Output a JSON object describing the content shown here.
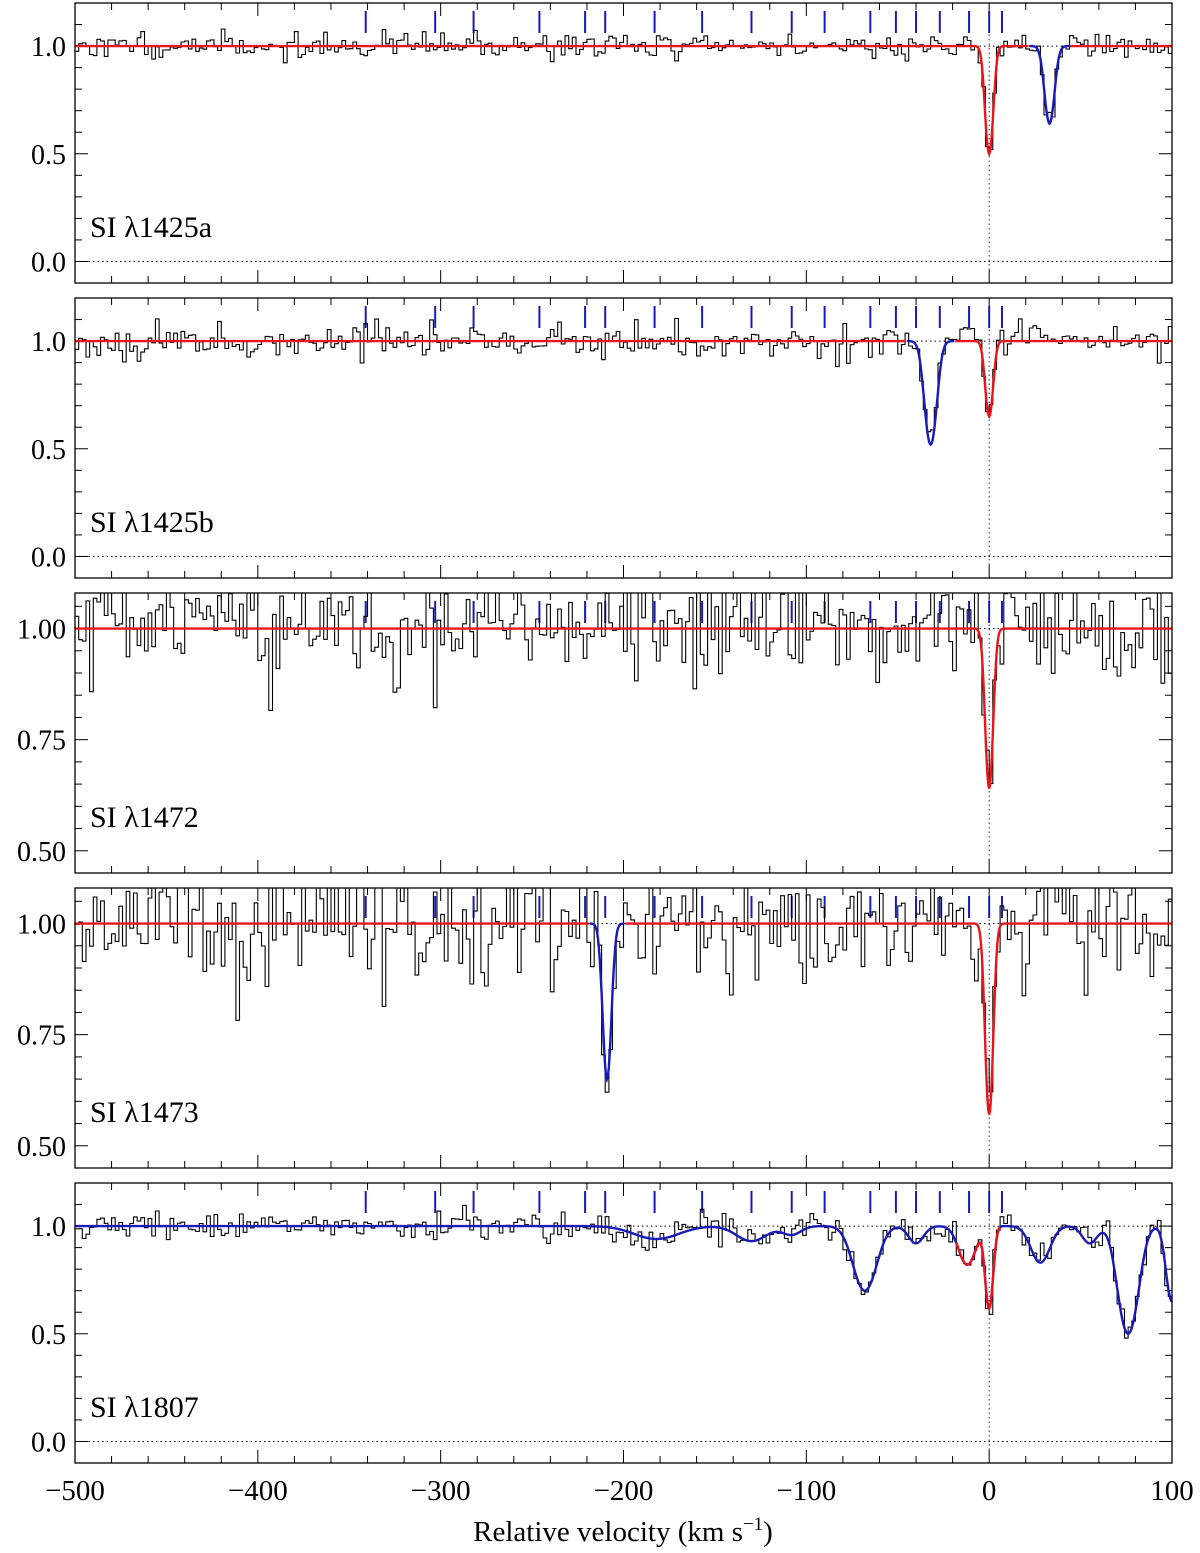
{
  "chart_data": {
    "type": "line",
    "layout": "vertical-stack-shared-x",
    "xlabel": "Relative velocity (km s",
    "xlabel_sup": "−1",
    "xlabel_close": ")",
    "xlim": [
      -500,
      100
    ],
    "x_ticks": [
      -500,
      -400,
      -300,
      -200,
      -100,
      0,
      100
    ],
    "x_tick_labels": [
      "−500",
      "−400",
      "−300",
      "−200",
      "−100",
      "0",
      "100"
    ],
    "component_marker_velocities": [
      -341,
      -303,
      -282,
      -246,
      -221,
      -210,
      -183,
      -157,
      -130,
      -108,
      -90,
      -65,
      -51,
      -40,
      -27,
      -11,
      0,
      7
    ],
    "colors": {
      "data": "#000000",
      "fit_main": "#e8161b",
      "fit_other": "#1a1ab8",
      "markers": "#1a1ab8",
      "reference": "#1a1ab8"
    },
    "panels": [
      {
        "label": "SI λ1425a",
        "ylim": [
          -0.1,
          1.2
        ],
        "y_ticks": [
          0.0,
          0.5,
          1.0
        ],
        "y_tick_labels": [
          "0.0",
          "0.5",
          "1.0"
        ],
        "noise": 0.03,
        "seed": 11,
        "features": [
          {
            "v": 0,
            "depth": 0.5,
            "width": 2.0,
            "fit": "main"
          },
          {
            "v": 33,
            "depth": 0.36,
            "width": 2.5,
            "fit": "other"
          }
        ]
      },
      {
        "label": "SI λ1425b",
        "ylim": [
          -0.1,
          1.2
        ],
        "y_ticks": [
          0.0,
          0.5,
          1.0
        ],
        "y_tick_labels": [
          "0.0",
          "0.5",
          "1.0"
        ],
        "noise": 0.035,
        "seed": 23,
        "features": [
          {
            "v": -32,
            "depth": 0.48,
            "width": 3.0,
            "fit": "other"
          },
          {
            "v": 0,
            "depth": 0.35,
            "width": 2.0,
            "fit": "main"
          }
        ]
      },
      {
        "label": "SI λ1472",
        "ylim": [
          0.45,
          1.08
        ],
        "y_ticks": [
          0.5,
          0.75,
          1.0
        ],
        "y_tick_labels": [
          "0.50",
          "0.75",
          "1.00"
        ],
        "noise": 0.06,
        "seed": 37,
        "features": [
          {
            "v": 0,
            "depth": 0.36,
            "width": 2.0,
            "fit": "main"
          }
        ]
      },
      {
        "label": "SI λ1473",
        "ylim": [
          0.45,
          1.08
        ],
        "y_ticks": [
          0.5,
          0.75,
          1.0
        ],
        "y_tick_labels": [
          "0.50",
          "0.75",
          "1.00"
        ],
        "noise": 0.07,
        "seed": 51,
        "features": [
          {
            "v": -209,
            "depth": 0.35,
            "width": 2.2,
            "fit": "other"
          },
          {
            "v": 0,
            "depth": 0.43,
            "width": 2.0,
            "fit": "main"
          }
        ]
      },
      {
        "label": "SI λ1807",
        "ylim": [
          -0.1,
          1.2
        ],
        "y_ticks": [
          0.0,
          0.5,
          1.0
        ],
        "y_tick_labels": [
          "0.0",
          "0.5",
          "1.0"
        ],
        "noise": 0.03,
        "seed": 67,
        "features": [
          {
            "v": -182,
            "depth": 0.06,
            "width": 12,
            "fit": "other"
          },
          {
            "v": -130,
            "depth": 0.07,
            "width": 8,
            "fit": "other"
          },
          {
            "v": -108,
            "depth": 0.04,
            "width": 5,
            "fit": "other"
          },
          {
            "v": -68,
            "depth": 0.3,
            "width": 6,
            "fit": "other"
          },
          {
            "v": -40,
            "depth": 0.08,
            "width": 4,
            "fit": "other"
          },
          {
            "v": -12,
            "depth": 0.18,
            "width": 4.5,
            "fit": "other"
          },
          {
            "v": 0,
            "depth": 0.38,
            "width": 2.0,
            "fit": "main"
          },
          {
            "v": 28,
            "depth": 0.17,
            "width": 5,
            "fit": "other"
          },
          {
            "v": 55,
            "depth": 0.08,
            "width": 4,
            "fit": "other"
          },
          {
            "v": 76,
            "depth": 0.5,
            "width": 5,
            "fit": "other"
          },
          {
            "v": 100,
            "depth": 0.35,
            "width": 3,
            "fit": "other"
          }
        ]
      }
    ]
  }
}
